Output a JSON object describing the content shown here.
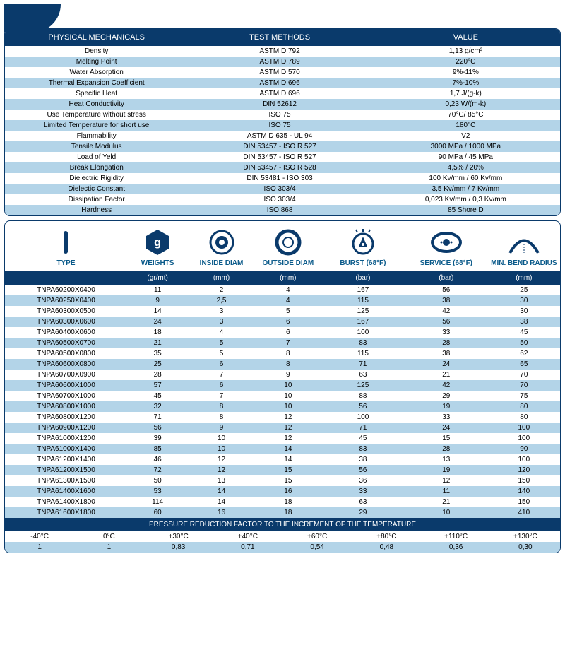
{
  "colors": {
    "navy": "#0a3a6b",
    "stripe": "#b3d4e8",
    "teal": "#0a5a8a"
  },
  "physical": {
    "headers": [
      "PHYSICAL MECHANICALS",
      "TEST METHODS",
      "VALUE"
    ],
    "rows": [
      [
        "Density",
        "ASTM D 792",
        "1,13 g/cm³"
      ],
      [
        "Melting Point",
        "ASTM D 789",
        "220°C"
      ],
      [
        "Water Absorption",
        "ASTM D 570",
        "9%-11%"
      ],
      [
        "Thermal Expansion Coefficient",
        "ASTM D 696",
        "7%-10%"
      ],
      [
        "Specific Heat",
        "ASTM D 696",
        "1,7 J/(g-k)"
      ],
      [
        "Heat Conductivity",
        "DIN 52612",
        "0,23 W/(m-k)"
      ],
      [
        "Use Temperature without stress",
        "ISO 75",
        "70°C/ 85°C"
      ],
      [
        "Limited Temperature for short use",
        "ISO 75",
        "180°C"
      ],
      [
        "Flammability",
        "ASTM D 635 - UL 94",
        "V2"
      ],
      [
        "Tensile Modulus",
        "DIN 53457 - ISO R 527",
        "3000 MPa / 1000 MPa"
      ],
      [
        "Load of Yeld",
        "DIN 53457 - ISO R 527",
        "90 MPa / 45 MPa"
      ],
      [
        "Break Elongation",
        "DIN 53457 - ISO R 528",
        "4,5% / 20%"
      ],
      [
        "Dielectric Rigidity",
        "DIN 53481 - ISO 303",
        "100 Kv/mm / 60 Kv/mm"
      ],
      [
        "Dielectic Constant",
        "ISO 303/4",
        "3,5 Kv/mm / 7 Kv/mm"
      ],
      [
        "Dissipation Factor",
        "ISO 303/4",
        "0,023 Kv/mm / 0,3 Kv/mm"
      ],
      [
        "Hardness",
        "ISO 868",
        "85 Shore D"
      ]
    ]
  },
  "icons": {
    "labels": [
      "TYPE",
      "WEIGHTS",
      "INSIDE DIAM",
      "OUTSIDE DIAM",
      "BURST (68°F)",
      "SERVICE (68°F)",
      "MIN. BEND RADIUS"
    ]
  },
  "spec": {
    "units": [
      "",
      "(gr/mt)",
      "(mm)",
      "(mm)",
      "(bar)",
      "(bar)",
      "(mm)"
    ],
    "rows": [
      [
        "TNPA60200X0400",
        "11",
        "2",
        "4",
        "167",
        "56",
        "25"
      ],
      [
        "TNPA60250X0400",
        "9",
        "2,5",
        "4",
        "115",
        "38",
        "30"
      ],
      [
        "TNPA60300X0500",
        "14",
        "3",
        "5",
        "125",
        "42",
        "30"
      ],
      [
        "TNPA60300X0600",
        "24",
        "3",
        "6",
        "167",
        "56",
        "38"
      ],
      [
        "TNPA60400X0600",
        "18",
        "4",
        "6",
        "100",
        "33",
        "45"
      ],
      [
        "TNPA60500X0700",
        "21",
        "5",
        "7",
        "83",
        "28",
        "50"
      ],
      [
        "TNPA60500X0800",
        "35",
        "5",
        "8",
        "115",
        "38",
        "62"
      ],
      [
        "TNPA60600X0800",
        "25",
        "6",
        "8",
        "71",
        "24",
        "65"
      ],
      [
        "TNPA60700X0900",
        "28",
        "7",
        "9",
        "63",
        "21",
        "70"
      ],
      [
        "TNPA60600X1000",
        "57",
        "6",
        "10",
        "125",
        "42",
        "70"
      ],
      [
        "TNPA60700X1000",
        "45",
        "7",
        "10",
        "88",
        "29",
        "75"
      ],
      [
        "TNPA60800X1000",
        "32",
        "8",
        "10",
        "56",
        "19",
        "80"
      ],
      [
        "TNPA60800X1200",
        "71",
        "8",
        "12",
        "100",
        "33",
        "80"
      ],
      [
        "TNPA60900X1200",
        "56",
        "9",
        "12",
        "71",
        "24",
        "100"
      ],
      [
        "TNPA61000X1200",
        "39",
        "10",
        "12",
        "45",
        "15",
        "100"
      ],
      [
        "TNPA61000X1400",
        "85",
        "10",
        "14",
        "83",
        "28",
        "90"
      ],
      [
        "TNPA61200X1400",
        "46",
        "12",
        "14",
        "38",
        "13",
        "100"
      ],
      [
        "TNPA61200X1500",
        "72",
        "12",
        "15",
        "56",
        "19",
        "120"
      ],
      [
        "TNPA61300X1500",
        "50",
        "13",
        "15",
        "36",
        "12",
        "150"
      ],
      [
        "TNPA61400X1600",
        "53",
        "14",
        "16",
        "33",
        "11",
        "140"
      ],
      [
        "TNPA61400X1800",
        "114",
        "14",
        "18",
        "63",
        "21",
        "150"
      ],
      [
        "TNPA61600X1800",
        "60",
        "16",
        "18",
        "29",
        "10",
        "410"
      ]
    ]
  },
  "pressure": {
    "title": "PRESSURE REDUCTION FACTOR TO THE INCREMENT OF THE TEMPERATURE",
    "temps": [
      "-40°C",
      "0°C",
      "+30°C",
      "+40°C",
      "+60°C",
      "+80°C",
      "+110°C",
      "+130°C"
    ],
    "factors": [
      "1",
      "1",
      "0,83",
      "0,71",
      "0,54",
      "0,48",
      "0,36",
      "0,30"
    ]
  }
}
